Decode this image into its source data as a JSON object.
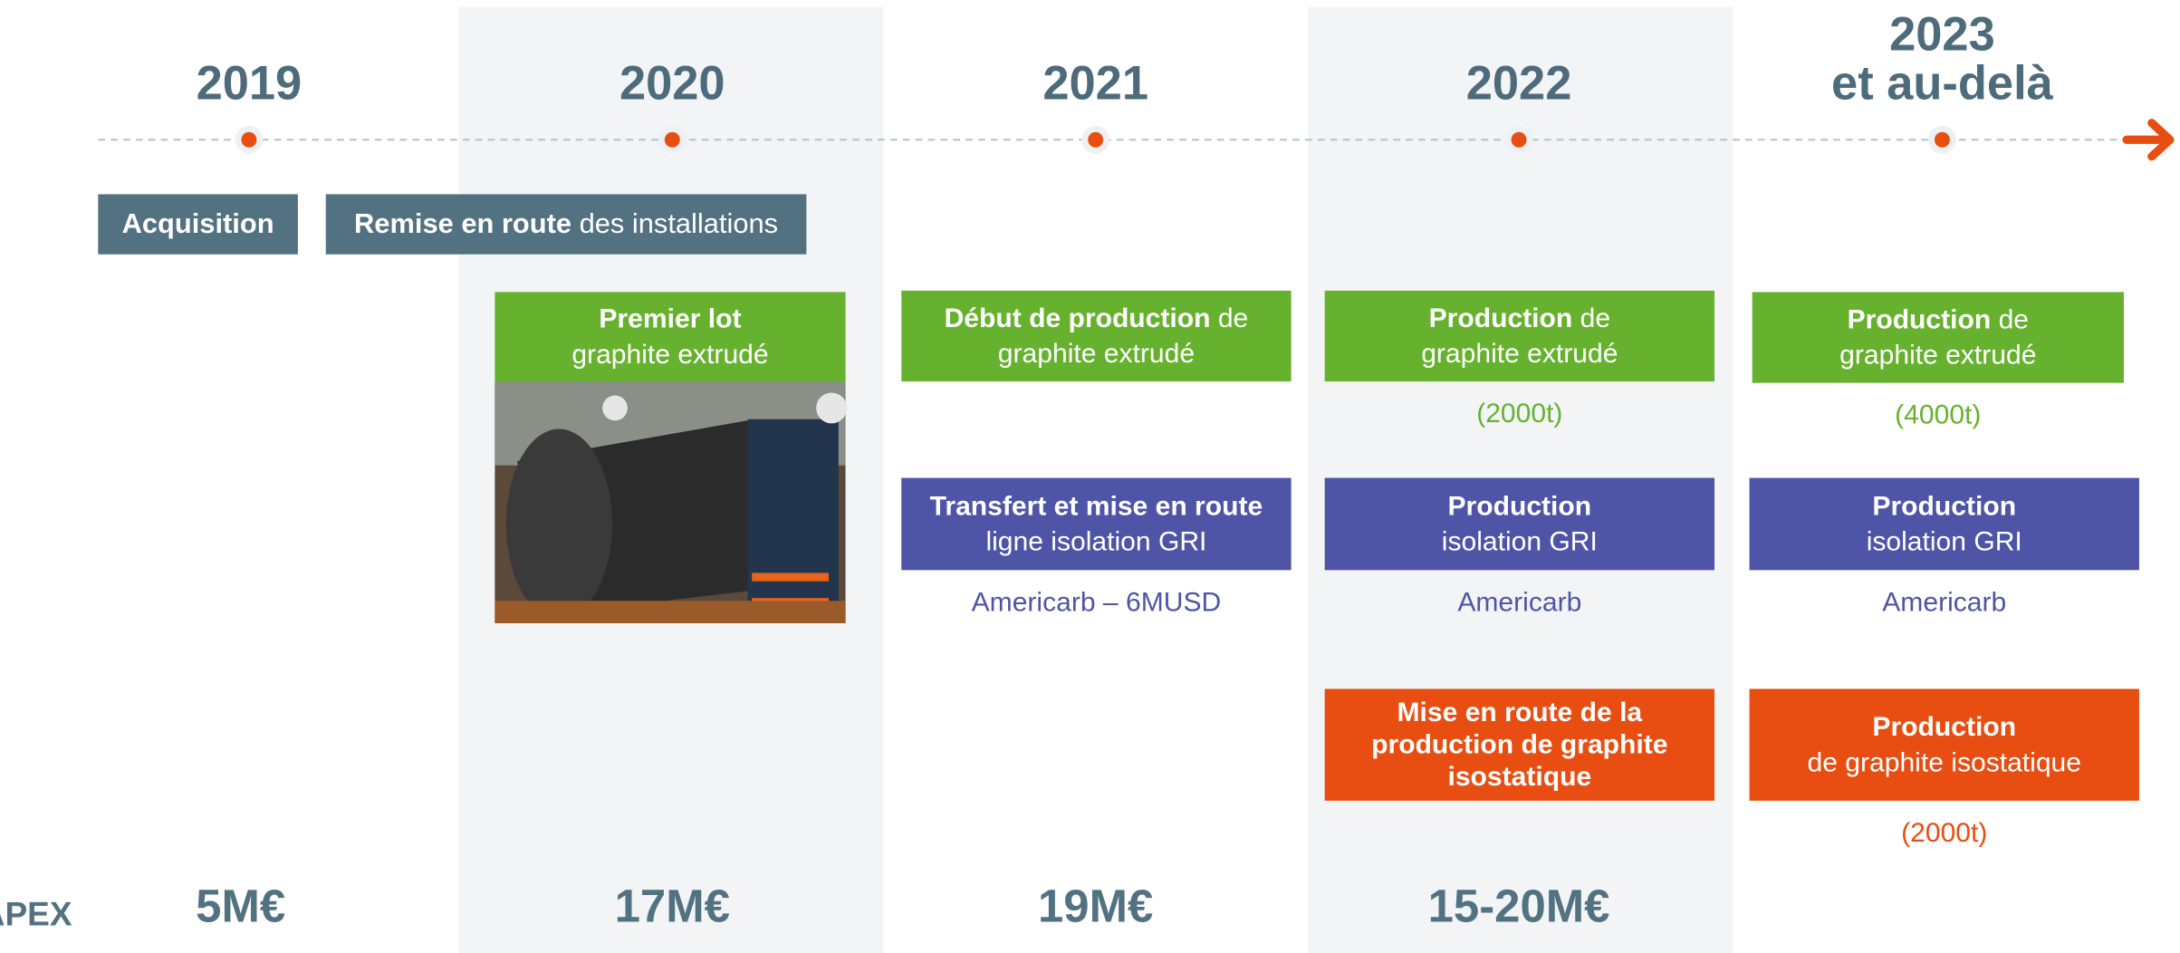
{
  "timeline": {
    "years": [
      [
        "2019"
      ],
      [
        "2020"
      ],
      [
        "2021"
      ],
      [
        "2022"
      ],
      [
        "2023",
        "et au-delà"
      ]
    ],
    "phases": [
      {
        "lines": [
          [
            {
              "bold": "Acquisition"
            }
          ]
        ]
      },
      {
        "lines": [
          [
            {
              "bold": "Remise en route"
            },
            {
              "text": " des installations"
            }
          ]
        ]
      }
    ],
    "boxes": [
      {
        "color": "#66b22e",
        "lines": [
          [
            {
              "bold": "Premier lot"
            }
          ],
          [
            {
              "text": "graphite extrudé"
            }
          ]
        ]
      },
      {
        "color": "#66b22e",
        "lines": [
          [
            {
              "bold": "Début de production"
            },
            {
              "text": " de"
            }
          ],
          [
            {
              "text": "graphite extrudé"
            }
          ]
        ]
      },
      {
        "color": "#66b22e",
        "lines": [
          [
            {
              "bold": "Production"
            },
            {
              "text": " de"
            }
          ],
          [
            {
              "text": "graphite extrudé"
            }
          ]
        ],
        "note": "(2000t)"
      },
      {
        "color": "#66b22e",
        "lines": [
          [
            {
              "bold": "Production"
            },
            {
              "text": " de"
            }
          ],
          [
            {
              "text": "graphite extrudé"
            }
          ]
        ],
        "note": "(4000t)"
      },
      {
        "color": "#4f55a6",
        "lines": [
          [
            {
              "bold": "Transfert et mise en route"
            }
          ],
          [
            {
              "text": "ligne isolation GRI"
            }
          ]
        ],
        "note": "Americarb – 6MUSD"
      },
      {
        "color": "#4f55a6",
        "lines": [
          [
            {
              "bold": "Production"
            }
          ],
          [
            {
              "text": "isolation GRI"
            }
          ]
        ],
        "note": "Americarb"
      },
      {
        "color": "#4f55a6",
        "lines": [
          [
            {
              "bold": "Production"
            }
          ],
          [
            {
              "text": "isolation GRI"
            }
          ]
        ],
        "note": "Americarb"
      },
      {
        "color": "#e84e12",
        "lines": [
          [
            {
              "bold": "Mise en route de la"
            }
          ],
          [
            {
              "bold": "production de graphite"
            }
          ],
          [
            {
              "bold": "isostatique"
            }
          ]
        ]
      },
      {
        "color": "#e84e12",
        "lines": [
          [
            {
              "bold": "Production"
            }
          ],
          [
            {
              "text": "de graphite isostatique"
            }
          ]
        ],
        "note": "(2000t)"
      }
    ],
    "capex": {
      "label": "CAPEX",
      "values": [
        "5M€",
        "17M€",
        "19M€",
        "15-20M€"
      ]
    }
  }
}
